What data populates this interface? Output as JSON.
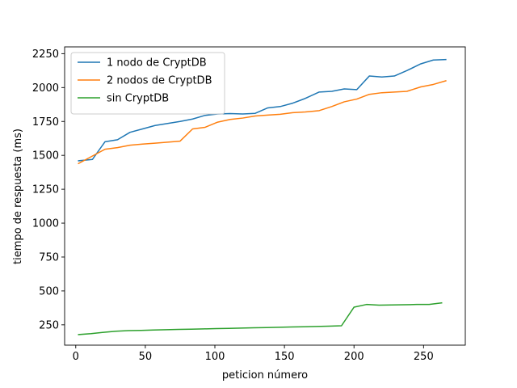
{
  "chart_data": {
    "type": "line",
    "title": "",
    "xlabel": "peticion número",
    "ylabel": "tiempo de respuesta (ms)",
    "xlim": [
      -8,
      280
    ],
    "ylim": [
      100,
      2300
    ],
    "xticks": [
      0,
      50,
      100,
      150,
      200,
      250
    ],
    "yticks": [
      250,
      500,
      750,
      1000,
      1250,
      1500,
      1750,
      2000,
      2250
    ],
    "legend_position": "upper-left",
    "series": [
      {
        "name": "1 nodo de CryptDB",
        "color": "#1f77b4",
        "x": [
          2,
          12,
          21,
          30,
          39,
          48,
          57,
          66,
          75,
          84,
          93,
          102,
          111,
          120,
          129,
          138,
          147,
          156,
          165,
          175,
          184,
          193,
          202,
          211,
          220,
          229,
          238,
          248,
          257,
          266
        ],
        "y": [
          1460,
          1470,
          1600,
          1615,
          1670,
          1695,
          1720,
          1735,
          1750,
          1768,
          1795,
          1805,
          1808,
          1805,
          1810,
          1850,
          1860,
          1885,
          1920,
          1967,
          1972,
          1990,
          1985,
          2085,
          2078,
          2085,
          2125,
          2175,
          2203,
          2207
        ]
      },
      {
        "name": "2 nodos de CryptDB",
        "color": "#ff7f0e",
        "x": [
          2,
          12,
          21,
          30,
          39,
          48,
          57,
          66,
          75,
          84,
          93,
          102,
          111,
          120,
          129,
          138,
          147,
          156,
          165,
          175,
          184,
          193,
          202,
          211,
          220,
          229,
          238,
          248,
          257,
          266
        ],
        "y": [
          1440,
          1495,
          1545,
          1557,
          1575,
          1583,
          1590,
          1597,
          1605,
          1695,
          1707,
          1745,
          1765,
          1775,
          1790,
          1797,
          1803,
          1815,
          1820,
          1830,
          1860,
          1895,
          1915,
          1950,
          1962,
          1967,
          1972,
          2005,
          2023,
          2050
        ],
        "width": 1.5
      },
      {
        "name": "sin CryptDB",
        "color": "#2ca02c",
        "x": [
          2,
          11,
          20,
          29,
          38,
          47,
          56,
          65,
          74,
          83,
          92,
          101,
          110,
          119,
          128,
          137,
          146,
          155,
          164,
          173,
          182,
          191,
          200,
          209,
          218,
          227,
          236,
          245,
          254,
          263
        ],
        "y": [
          178,
          185,
          195,
          203,
          207,
          209,
          212,
          214,
          216,
          218,
          220,
          222,
          224,
          226,
          228,
          230,
          232,
          234,
          236,
          238,
          240,
          243,
          380,
          400,
          395,
          397,
          398,
          400,
          400,
          412
        ]
      }
    ]
  }
}
